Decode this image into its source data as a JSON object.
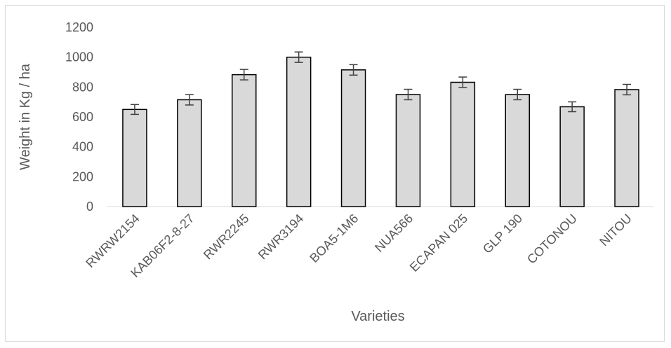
{
  "chart_data": {
    "type": "bar",
    "title": "",
    "xlabel": "Varieties",
    "ylabel": "Weight in Kg / ha",
    "ylim": [
      0,
      1200
    ],
    "yticks": [
      0,
      200,
      400,
      600,
      800,
      1000,
      1200
    ],
    "categories": [
      "RWRW2154",
      "KAB06F2-8-27",
      "RWR2245",
      "RWR3194",
      "BOA5-1M6",
      "NUA566",
      "ECAPAN 025",
      "GLP 190",
      "COTONOU",
      "NITOU"
    ],
    "values": [
      650,
      715,
      883,
      1000,
      915,
      750,
      832,
      750,
      668,
      783
    ],
    "error": [
      33,
      35,
      35,
      35,
      35,
      35,
      35,
      35,
      33,
      35
    ],
    "bar_color": "#d9d9d9",
    "bar_edge_color": "#000000",
    "grid": false,
    "legend": "none"
  }
}
